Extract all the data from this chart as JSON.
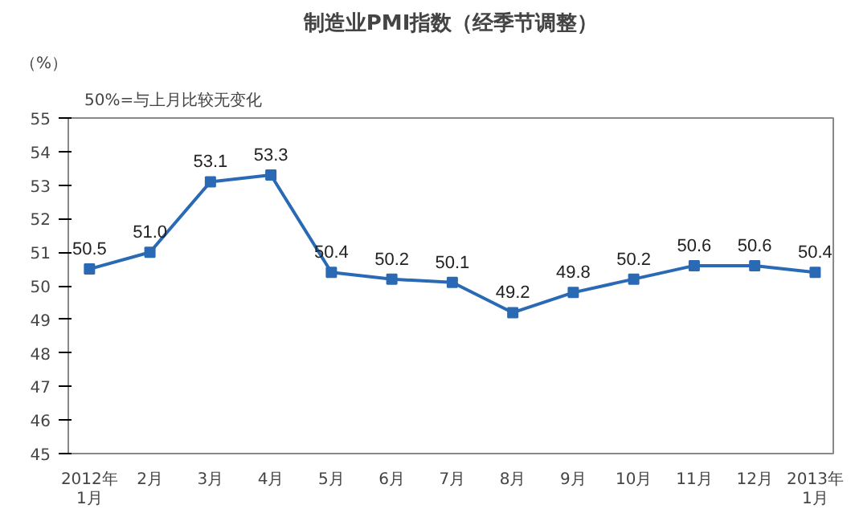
{
  "chart_data": {
    "type": "line",
    "title": "制造业PMI指数（经季节调整）",
    "ylabel": "（%）",
    "annotations": [
      "50%=与上月比较无变化"
    ],
    "categories": [
      "2012年\n1月",
      "2月",
      "3月",
      "4月",
      "5月",
      "6月",
      "7月",
      "8月",
      "9月",
      "10月",
      "11月",
      "12月",
      "2013年\n1月"
    ],
    "series": [
      {
        "color": "#2a6ab5",
        "values": [
          50.5,
          51.0,
          53.1,
          53.3,
          50.4,
          50.2,
          50.1,
          49.2,
          49.8,
          50.2,
          50.6,
          50.6,
          50.4
        ]
      }
    ],
    "value_labels": [
      "50.5",
      "51.0",
      "53.1",
      "53.3",
      "50.4",
      "50.2",
      "50.1",
      "49.2",
      "49.8",
      "50.2",
      "50.6",
      "50.6",
      "50.4"
    ],
    "ylim": [
      45,
      55
    ],
    "yticks": [
      45,
      46,
      47,
      48,
      49,
      50,
      51,
      52,
      53,
      54,
      55
    ],
    "grid": false,
    "legend": false,
    "marker": "square",
    "line_style": "solid"
  }
}
